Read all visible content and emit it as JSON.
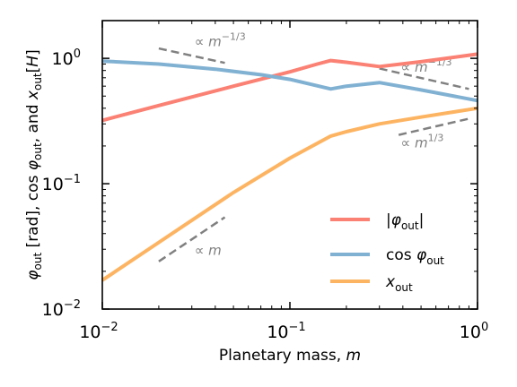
{
  "chart_data": {
    "type": "line",
    "xscale": "log",
    "yscale": "log",
    "xlim": [
      0.01,
      1
    ],
    "ylim": [
      0.01,
      2
    ],
    "xlabel": "Planetary mass, m",
    "ylabel": "φout [rad], cos φout, and xout[H]",
    "xticks": [
      {
        "value": 0.01,
        "base": "10",
        "exp": "−2"
      },
      {
        "value": 0.1,
        "base": "10",
        "exp": "−1"
      },
      {
        "value": 1,
        "base": "10",
        "exp": "0"
      }
    ],
    "yticks": [
      {
        "value": 0.01,
        "base": "10",
        "exp": "−2"
      },
      {
        "value": 0.1,
        "base": "10",
        "exp": "−1"
      },
      {
        "value": 1,
        "base": "10",
        "exp": "0"
      }
    ],
    "series": [
      {
        "name": "|φout|",
        "color": "#fa8174",
        "x": [
          0.01,
          0.02,
          0.05,
          0.1,
          0.14,
          0.165,
          0.2,
          0.3,
          0.5,
          1.0
        ],
        "y": [
          0.32,
          0.42,
          0.6,
          0.78,
          0.9,
          0.96,
          0.93,
          0.86,
          0.94,
          1.08
        ]
      },
      {
        "name": "cos φout",
        "color": "#81b1d2",
        "x": [
          0.01,
          0.02,
          0.04,
          0.07,
          0.1,
          0.13,
          0.165,
          0.2,
          0.3,
          0.5,
          1.0
        ],
        "y": [
          0.95,
          0.9,
          0.82,
          0.74,
          0.68,
          0.62,
          0.57,
          0.6,
          0.64,
          0.56,
          0.46
        ]
      },
      {
        "name": "xout",
        "color": "#fdb462",
        "x": [
          0.01,
          0.02,
          0.05,
          0.1,
          0.165,
          0.2,
          0.3,
          0.5,
          1.0
        ],
        "y": [
          0.017,
          0.034,
          0.085,
          0.16,
          0.24,
          0.26,
          0.3,
          0.34,
          0.4
        ]
      }
    ],
    "scaling_guides": [
      {
        "label": "∝ m",
        "x": [
          0.02,
          0.045
        ],
        "y": [
          0.024,
          0.054
        ],
        "text_x": 0.031,
        "text_y": 0.027
      },
      {
        "label": "∝ m−1/3",
        "x": [
          0.02,
          0.045
        ],
        "y": [
          1.2,
          0.92
        ],
        "text_x": 0.031,
        "text_y": 1.25
      },
      {
        "label": "∝ m−1/3",
        "x": [
          0.3,
          0.9
        ],
        "y": [
          0.83,
          0.57
        ],
        "text_x": 0.39,
        "text_y": 0.78
      },
      {
        "label": "∝ m1/3",
        "x": [
          0.38,
          0.9
        ],
        "y": [
          0.245,
          0.33
        ],
        "text_x": 0.39,
        "text_y": 0.195
      }
    ],
    "legend": {
      "position": "lower-right"
    },
    "grid": false
  }
}
